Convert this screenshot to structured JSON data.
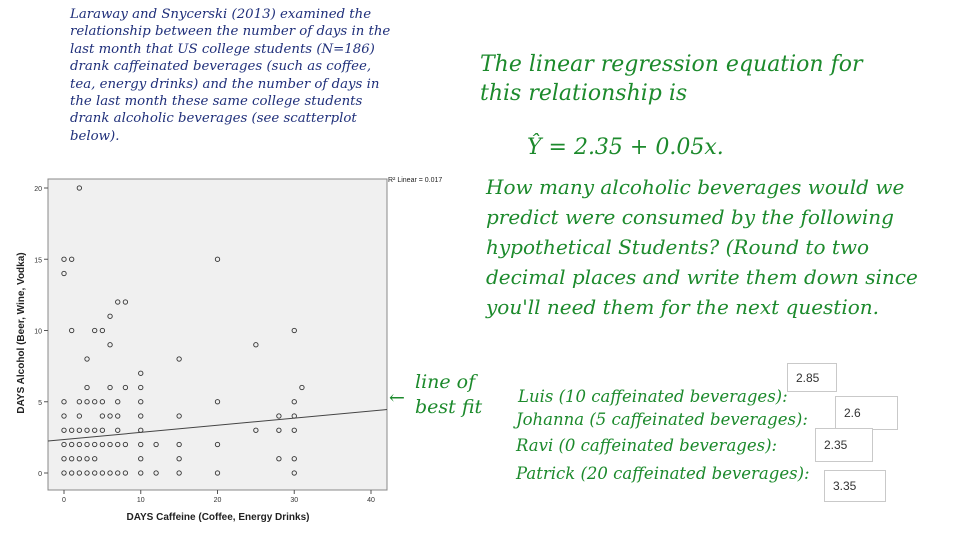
{
  "intro_text": "Laraway and Snycerski (2013) examined the relationship between the number of days in the last month that US college students (N=186) drank caffeinated beverages (such as coffee, tea, energy drinks) and the number of days in the last month these same college students drank alcoholic beverages (see scatterplot below).",
  "equation_intro": "The linear regression equation for this relationship is",
  "equation": "Ŷ = 2.35 + 0.05x.",
  "question": "How many alcoholic beverages would we predict were consumed by the following hypothetical Students? (Round to two decimal places and write them down since you'll need them for the next question.",
  "best_fit_label": "line of best fit",
  "answers": [
    {
      "label": "Luis (10 caffeinated beverages):",
      "value": "2.85"
    },
    {
      "label": "Johanna (5 caffeinated beverages):",
      "value": "2.6"
    },
    {
      "label": "Ravi (0 caffeinated beverages):",
      "value": "2.35"
    },
    {
      "label": "Patrick (20 caffeinated beverages):",
      "value": "3.35"
    }
  ],
  "colors": {
    "blue_ink": "#1f2f7a",
    "green_ink": "#1c8a2c",
    "plot_bg": "#f0f0f0"
  },
  "chart_data": {
    "type": "scatter",
    "xlabel": "DAYS Caffeine (Coffee, Energy Drinks)",
    "ylabel": "DAYS Alcohol (Beer, Wine, Vodka)",
    "xlim": [
      0,
      40
    ],
    "ylim": [
      0,
      20
    ],
    "xticks": [
      0,
      10,
      20,
      30,
      40
    ],
    "yticks": [
      0,
      5,
      10,
      15,
      20
    ],
    "r2_label": "R² Linear = 0.017",
    "fit_line": {
      "intercept": 2.35,
      "slope": 0.05
    },
    "points": [
      [
        2,
        20
      ],
      [
        0,
        15
      ],
      [
        1,
        15
      ],
      [
        20,
        15
      ],
      [
        0,
        14
      ],
      [
        7,
        12
      ],
      [
        8,
        12
      ],
      [
        6,
        11
      ],
      [
        1,
        10
      ],
      [
        4,
        10
      ],
      [
        5,
        10
      ],
      [
        30,
        10
      ],
      [
        6,
        9
      ],
      [
        25,
        9
      ],
      [
        3,
        8
      ],
      [
        15,
        8
      ],
      [
        10,
        7
      ],
      [
        3,
        6
      ],
      [
        6,
        6
      ],
      [
        8,
        6
      ],
      [
        10,
        6
      ],
      [
        31,
        6
      ],
      [
        0,
        5
      ],
      [
        2,
        5
      ],
      [
        3,
        5
      ],
      [
        4,
        5
      ],
      [
        5,
        5
      ],
      [
        7,
        5
      ],
      [
        10,
        5
      ],
      [
        20,
        5
      ],
      [
        30,
        5
      ],
      [
        0,
        4
      ],
      [
        2,
        4
      ],
      [
        5,
        4
      ],
      [
        6,
        4
      ],
      [
        7,
        4
      ],
      [
        10,
        4
      ],
      [
        15,
        4
      ],
      [
        28,
        4
      ],
      [
        30,
        4
      ],
      [
        0,
        3
      ],
      [
        1,
        3
      ],
      [
        2,
        3
      ],
      [
        3,
        3
      ],
      [
        4,
        3
      ],
      [
        5,
        3
      ],
      [
        7,
        3
      ],
      [
        10,
        3
      ],
      [
        25,
        3
      ],
      [
        28,
        3
      ],
      [
        30,
        3
      ],
      [
        0,
        2
      ],
      [
        1,
        2
      ],
      [
        2,
        2
      ],
      [
        3,
        2
      ],
      [
        4,
        2
      ],
      [
        5,
        2
      ],
      [
        6,
        2
      ],
      [
        7,
        2
      ],
      [
        8,
        2
      ],
      [
        10,
        2
      ],
      [
        12,
        2
      ],
      [
        15,
        2
      ],
      [
        20,
        2
      ],
      [
        0,
        1
      ],
      [
        1,
        1
      ],
      [
        2,
        1
      ],
      [
        3,
        1
      ],
      [
        4,
        1
      ],
      [
        10,
        1
      ],
      [
        15,
        1
      ],
      [
        28,
        1
      ],
      [
        30,
        1
      ],
      [
        0,
        0
      ],
      [
        1,
        0
      ],
      [
        2,
        0
      ],
      [
        3,
        0
      ],
      [
        4,
        0
      ],
      [
        5,
        0
      ],
      [
        6,
        0
      ],
      [
        7,
        0
      ],
      [
        8,
        0
      ],
      [
        10,
        0
      ],
      [
        12,
        0
      ],
      [
        15,
        0
      ],
      [
        20,
        0
      ],
      [
        30,
        0
      ]
    ]
  }
}
